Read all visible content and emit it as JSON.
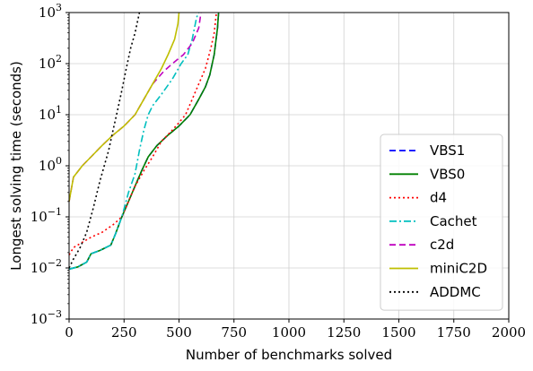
{
  "chart_data": {
    "type": "line",
    "title": "",
    "xlabel": "Number of benchmarks solved",
    "ylabel": "Longest solving time (seconds)",
    "xlim": [
      0,
      2000
    ],
    "ylim": [
      0.001,
      1000
    ],
    "yscale": "log",
    "grid": true,
    "legend_position": "lower-right",
    "x_ticks": [
      0,
      250,
      500,
      750,
      1000,
      1250,
      1500,
      1750,
      2000
    ],
    "x_tick_labels": [
      "0",
      "250",
      "500",
      "750",
      "1000",
      "1250",
      "1500",
      "1750",
      "2000"
    ],
    "y_ticks": [
      0.001,
      0.01,
      0.1,
      1,
      10,
      100,
      1000
    ],
    "y_tick_labels": [
      {
        "base": "10",
        "exp": "−3"
      },
      {
        "base": "10",
        "exp": "−2"
      },
      {
        "base": "10",
        "exp": "−1"
      },
      {
        "base": "10",
        "exp": "0"
      },
      {
        "base": "10",
        "exp": "1"
      },
      {
        "base": "10",
        "exp": "2"
      },
      {
        "base": "10",
        "exp": "3"
      }
    ],
    "series": [
      {
        "name": "VBS1",
        "color": "#0000ff",
        "dash": "dashed",
        "points": [
          [
            0,
            0.0095
          ],
          [
            40,
            0.0105
          ],
          [
            80,
            0.013
          ],
          [
            100,
            0.019
          ],
          [
            140,
            0.022
          ],
          [
            190,
            0.028
          ],
          [
            210,
            0.045
          ],
          [
            240,
            0.1
          ],
          [
            270,
            0.2
          ],
          [
            300,
            0.4
          ],
          [
            330,
            0.8
          ],
          [
            360,
            1.5
          ],
          [
            400,
            2.5
          ],
          [
            450,
            4
          ],
          [
            500,
            6
          ],
          [
            550,
            10
          ],
          [
            590,
            20
          ],
          [
            620,
            35
          ],
          [
            640,
            60
          ],
          [
            660,
            150
          ],
          [
            675,
            500
          ],
          [
            680,
            1000
          ]
        ]
      },
      {
        "name": "VBS0",
        "color": "#008000",
        "dash": "solid",
        "points": [
          [
            0,
            0.0095
          ],
          [
            40,
            0.0105
          ],
          [
            80,
            0.013
          ],
          [
            100,
            0.019
          ],
          [
            140,
            0.022
          ],
          [
            190,
            0.028
          ],
          [
            210,
            0.045
          ],
          [
            240,
            0.1
          ],
          [
            270,
            0.2
          ],
          [
            300,
            0.4
          ],
          [
            330,
            0.8
          ],
          [
            360,
            1.5
          ],
          [
            400,
            2.5
          ],
          [
            450,
            4
          ],
          [
            500,
            6
          ],
          [
            550,
            10
          ],
          [
            590,
            20
          ],
          [
            620,
            35
          ],
          [
            640,
            60
          ],
          [
            660,
            150
          ],
          [
            675,
            500
          ],
          [
            680,
            1000
          ]
        ]
      },
      {
        "name": "d4",
        "color": "#ff0000",
        "dash": "dotted",
        "points": [
          [
            0,
            0.018
          ],
          [
            20,
            0.025
          ],
          [
            50,
            0.03
          ],
          [
            100,
            0.04
          ],
          [
            150,
            0.05
          ],
          [
            200,
            0.07
          ],
          [
            240,
            0.1
          ],
          [
            270,
            0.2
          ],
          [
            300,
            0.4
          ],
          [
            340,
            0.8
          ],
          [
            380,
            1.5
          ],
          [
            420,
            3
          ],
          [
            470,
            5
          ],
          [
            500,
            7
          ],
          [
            530,
            10
          ],
          [
            560,
            20
          ],
          [
            590,
            40
          ],
          [
            620,
            80
          ],
          [
            645,
            200
          ],
          [
            660,
            400
          ],
          [
            670,
            1000
          ]
        ]
      },
      {
        "name": "Cachet",
        "color": "#00bfbf",
        "dash": "dashdot",
        "points": [
          [
            0,
            0.0095
          ],
          [
            40,
            0.0105
          ],
          [
            80,
            0.013
          ],
          [
            100,
            0.019
          ],
          [
            140,
            0.022
          ],
          [
            190,
            0.028
          ],
          [
            210,
            0.045
          ],
          [
            240,
            0.1
          ],
          [
            270,
            0.3
          ],
          [
            300,
            0.7
          ],
          [
            320,
            2
          ],
          [
            340,
            5
          ],
          [
            360,
            10
          ],
          [
            380,
            15
          ],
          [
            420,
            25
          ],
          [
            470,
            50
          ],
          [
            510,
            100
          ],
          [
            540,
            150
          ],
          [
            560,
            300
          ],
          [
            580,
            800
          ],
          [
            590,
            1000
          ]
        ]
      },
      {
        "name": "c2d",
        "color": "#bf00bf",
        "dash": "dashed",
        "points": [
          [
            0,
            0.2
          ],
          [
            20,
            0.6
          ],
          [
            60,
            1
          ],
          [
            100,
            1.5
          ],
          [
            150,
            2.5
          ],
          [
            200,
            4
          ],
          [
            250,
            6
          ],
          [
            300,
            10
          ],
          [
            340,
            20
          ],
          [
            380,
            40
          ],
          [
            430,
            70
          ],
          [
            470,
            100
          ],
          [
            520,
            150
          ],
          [
            560,
            250
          ],
          [
            590,
            500
          ],
          [
            600,
            1000
          ]
        ]
      },
      {
        "name": "miniC2D",
        "color": "#bfbf00",
        "dash": "solid",
        "points": [
          [
            0,
            0.2
          ],
          [
            20,
            0.6
          ],
          [
            60,
            1
          ],
          [
            100,
            1.5
          ],
          [
            150,
            2.5
          ],
          [
            200,
            4
          ],
          [
            250,
            6
          ],
          [
            300,
            10
          ],
          [
            340,
            20
          ],
          [
            380,
            40
          ],
          [
            420,
            80
          ],
          [
            450,
            150
          ],
          [
            480,
            300
          ],
          [
            495,
            600
          ],
          [
            500,
            1000
          ]
        ]
      },
      {
        "name": "ADDMC",
        "color": "#000000",
        "dash": "dotted",
        "points": [
          [
            0,
            0.01
          ],
          [
            20,
            0.015
          ],
          [
            50,
            0.025
          ],
          [
            80,
            0.05
          ],
          [
            110,
            0.15
          ],
          [
            140,
            0.5
          ],
          [
            160,
            1
          ],
          [
            180,
            2
          ],
          [
            200,
            5
          ],
          [
            220,
            12
          ],
          [
            240,
            30
          ],
          [
            260,
            80
          ],
          [
            280,
            200
          ],
          [
            300,
            400
          ],
          [
            320,
            1000
          ]
        ]
      }
    ]
  }
}
